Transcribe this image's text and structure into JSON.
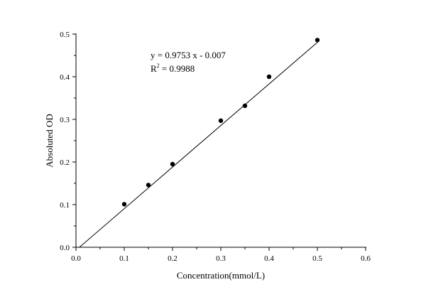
{
  "chart_data": {
    "type": "scatter",
    "title": "",
    "xlabel": "Concentration(mmol/L)",
    "ylabel": "Absoluted OD",
    "xlim": [
      0.0,
      0.6
    ],
    "ylim": [
      0.0,
      0.5
    ],
    "x_ticks": [
      0.0,
      0.1,
      0.2,
      0.3,
      0.4,
      0.5,
      0.6
    ],
    "x_tick_labels": [
      "0.0",
      "0.1",
      "0.2",
      "0.3",
      "0.4",
      "0.5",
      "0.6"
    ],
    "y_ticks": [
      0.0,
      0.1,
      0.2,
      0.3,
      0.4,
      0.5
    ],
    "y_tick_labels": [
      "0.0",
      "0.1",
      "0.2",
      "0.3",
      "0.4",
      "0.5"
    ],
    "grid": false,
    "series": [
      {
        "name": "data",
        "x": [
          0.1,
          0.15,
          0.2,
          0.3,
          0.35,
          0.4,
          0.5
        ],
        "y": [
          0.101,
          0.146,
          0.195,
          0.297,
          0.332,
          0.4,
          0.486
        ]
      }
    ],
    "fit_line": {
      "slope": 0.9753,
      "intercept": -0.007,
      "x_range": [
        0.0,
        0.5
      ]
    },
    "annotations": {
      "equation": "y = 0.9753 x - 0.007",
      "r2_prefix": "R",
      "r2_superscript": "2",
      "r2_suffix": " = 0.9988"
    },
    "colors": {
      "marker": "#000000",
      "line": "#000000",
      "axis": "#000000"
    }
  }
}
